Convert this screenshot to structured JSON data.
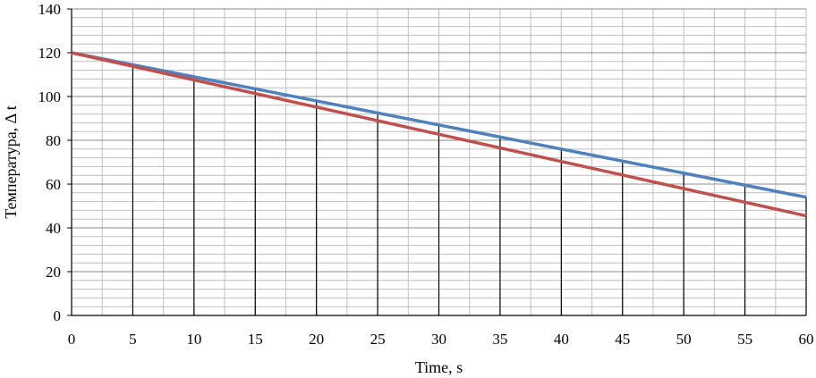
{
  "chart_data": {
    "type": "line",
    "title": "",
    "xlabel": "Time, s",
    "ylabel": "Температура, Δ t",
    "xlim": [
      0,
      60
    ],
    "ylim": [
      0,
      140
    ],
    "x_ticks": [
      0,
      5,
      10,
      15,
      20,
      25,
      30,
      35,
      40,
      45,
      50,
      55,
      60
    ],
    "y_ticks": [
      0,
      20,
      40,
      60,
      80,
      100,
      120,
      140
    ],
    "grid": true,
    "legend": "none",
    "series": [
      {
        "color": "#4F81BD",
        "x": [
          0,
          60
        ],
        "y": [
          120,
          54
        ]
      },
      {
        "color": "#C0504D",
        "x": [
          0,
          60
        ],
        "y": [
          120,
          45.5
        ]
      }
    ],
    "drop_lines_x": [
      5,
      10,
      15,
      20,
      25,
      30,
      35,
      40,
      45,
      50,
      55,
      60
    ]
  }
}
